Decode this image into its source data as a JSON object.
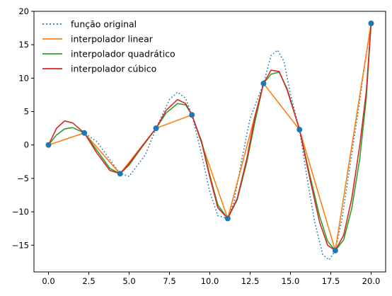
{
  "chart_data": {
    "type": "line",
    "title": "",
    "xlabel": "",
    "ylabel": "",
    "xlim": [
      -0.9,
      20.9
    ],
    "ylim": [
      -19,
      20
    ],
    "xticks": [
      0.0,
      2.5,
      5.0,
      7.5,
      10.0,
      12.5,
      15.0,
      17.5,
      20.0
    ],
    "xtick_labels": [
      "0.0",
      "2.5",
      "5.0",
      "7.5",
      "10.0",
      "12.5",
      "15.0",
      "17.5",
      "20.0"
    ],
    "yticks": [
      -15,
      -10,
      -5,
      0,
      5,
      10,
      15,
      20
    ],
    "ytick_labels": [
      "−15",
      "−10",
      "−5",
      "0",
      "5",
      "10",
      "15",
      "20"
    ],
    "grid": false,
    "legend_position": "top-left",
    "legend": [
      {
        "label": "função original",
        "color": "#1f77b4",
        "style": "dotted"
      },
      {
        "label": "interpolador linear",
        "color": "#ff7f0e",
        "style": "solid"
      },
      {
        "label": "interpolador quadrático",
        "color": "#2ca02c",
        "style": "solid"
      },
      {
        "label": "interpolador cúbico",
        "color": "#d62728",
        "style": "solid"
      }
    ],
    "nodes": {
      "color": "#1f77b4",
      "x": [
        0.0,
        2.22,
        4.44,
        6.67,
        8.89,
        11.11,
        13.33,
        15.56,
        17.78,
        20.0
      ],
      "y": [
        0.0,
        1.8,
        -4.3,
        2.5,
        4.5,
        -11.0,
        9.2,
        2.3,
        -15.8,
        18.2
      ]
    },
    "series": [
      {
        "name": "função original",
        "color": "#1f77b4",
        "style": "dotted",
        "x": [
          0.0,
          1.0,
          2.22,
          3.0,
          4.44,
          5.0,
          6.0,
          6.67,
          7.5,
          8.0,
          8.5,
          8.89,
          9.5,
          10.0,
          10.5,
          11.11,
          11.5,
          12.0,
          12.5,
          13.33,
          13.8,
          14.2,
          14.6,
          15.0,
          15.56,
          16.0,
          16.5,
          17.0,
          17.4,
          17.78,
          18.2,
          18.7,
          19.2,
          19.6,
          20.0
        ],
        "y": [
          0.0,
          0.8,
          1.8,
          0.5,
          -4.3,
          -4.7,
          -1.5,
          2.5,
          6.8,
          7.9,
          7.0,
          4.5,
          -1.5,
          -7.0,
          -10.6,
          -11.0,
          -8.5,
          -2.0,
          4.0,
          9.2,
          13.4,
          14.2,
          12.5,
          7.6,
          2.3,
          -4.5,
          -11.5,
          -16.4,
          -17.2,
          -15.8,
          -11.0,
          -3.0,
          5.0,
          12.0,
          18.2
        ]
      },
      {
        "name": "interpolador linear",
        "color": "#ff7f0e",
        "style": "solid",
        "x": [
          0.0,
          2.22,
          4.44,
          6.67,
          8.89,
          11.11,
          13.33,
          15.56,
          17.78,
          20.0
        ],
        "y": [
          0.0,
          1.8,
          -4.3,
          2.5,
          4.5,
          -11.0,
          9.2,
          2.3,
          -15.8,
          18.2
        ]
      },
      {
        "name": "interpolador quadrático",
        "color": "#2ca02c",
        "style": "solid",
        "x": [
          0.0,
          0.5,
          1.0,
          1.5,
          2.22,
          3.0,
          3.8,
          4.44,
          5.0,
          5.8,
          6.67,
          7.3,
          8.0,
          8.5,
          8.89,
          9.5,
          10.0,
          10.5,
          11.11,
          11.7,
          12.3,
          12.8,
          13.33,
          13.8,
          14.3,
          14.8,
          15.56,
          16.2,
          16.8,
          17.3,
          17.78,
          18.3,
          18.8,
          19.3,
          19.7,
          20.0
        ],
        "y": [
          0.0,
          1.5,
          2.4,
          2.6,
          1.8,
          -0.8,
          -3.5,
          -4.3,
          -3.0,
          -0.3,
          2.5,
          4.8,
          6.2,
          6.0,
          4.5,
          0.5,
          -4.5,
          -9.0,
          -11.0,
          -8.2,
          -2.5,
          3.5,
          9.2,
          10.6,
          10.9,
          8.4,
          2.3,
          -4.5,
          -10.6,
          -14.4,
          -15.8,
          -14.2,
          -9.5,
          -2.0,
          7.0,
          18.2
        ]
      },
      {
        "name": "interpolador cúbico",
        "color": "#d62728",
        "style": "solid",
        "x": [
          0.0,
          0.5,
          1.0,
          1.5,
          2.22,
          3.0,
          3.8,
          4.44,
          5.0,
          5.8,
          6.67,
          7.3,
          8.0,
          8.5,
          8.89,
          9.5,
          10.0,
          10.5,
          11.11,
          11.7,
          12.3,
          12.8,
          13.33,
          13.8,
          14.3,
          14.8,
          15.56,
          16.2,
          16.8,
          17.3,
          17.78,
          18.3,
          18.8,
          19.3,
          19.7,
          20.0
        ],
        "y": [
          0.0,
          2.5,
          3.6,
          3.3,
          1.8,
          -1.2,
          -3.8,
          -4.3,
          -2.8,
          -0.2,
          2.5,
          5.2,
          6.8,
          6.2,
          4.5,
          0.3,
          -4.8,
          -9.4,
          -11.0,
          -8.0,
          -2.0,
          4.2,
          9.2,
          11.2,
          11.0,
          8.2,
          2.3,
          -5.0,
          -11.5,
          -15.0,
          -15.8,
          -13.5,
          -8.0,
          0.0,
          8.0,
          18.2
        ]
      }
    ]
  }
}
